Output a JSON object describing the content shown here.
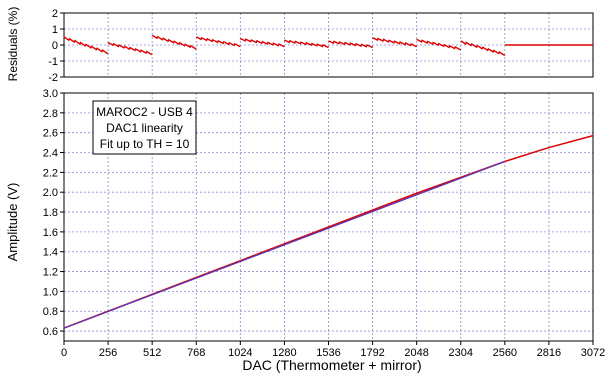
{
  "chart_data": [
    {
      "type": "line",
      "panel": "residuals",
      "ylabel": "Residuals (%)",
      "ylim": [
        -2,
        2
      ],
      "yticks": [
        "-2",
        "-1",
        "0",
        "1",
        "2"
      ],
      "xlim": [
        0,
        3072
      ],
      "grid": true,
      "series": [
        {
          "color": "#dd0000",
          "segments": [
            {
              "x": [
                0,
                256
              ],
              "y": [
                0.45,
                -0.5
              ]
            },
            {
              "x": [
                256,
                512
              ],
              "y": [
                0.1,
                -0.55
              ]
            },
            {
              "x": [
                512,
                768
              ],
              "y": [
                0.55,
                -0.2
              ]
            },
            {
              "x": [
                768,
                1024
              ],
              "y": [
                0.45,
                -0.05
              ]
            },
            {
              "x": [
                1024,
                1280
              ],
              "y": [
                0.35,
                -0.05
              ]
            },
            {
              "x": [
                1280,
                1536
              ],
              "y": [
                0.25,
                -0.1
              ]
            },
            {
              "x": [
                1536,
                1792
              ],
              "y": [
                0.2,
                -0.1
              ]
            },
            {
              "x": [
                1792,
                2048
              ],
              "y": [
                0.4,
                -0.05
              ]
            },
            {
              "x": [
                2048,
                2304
              ],
              "y": [
                0.3,
                -0.25
              ]
            },
            {
              "x": [
                2304,
                2560
              ],
              "y": [
                0.2,
                -0.6
              ]
            },
            {
              "x": [
                2560,
                3072
              ],
              "y": [
                0,
                0
              ]
            }
          ]
        }
      ]
    },
    {
      "type": "line",
      "panel": "amplitude",
      "xlabel": "DAC (Thermometer + mirror)",
      "ylabel": "Amplitude (V)",
      "xlim": [
        0,
        3072
      ],
      "ylim": [
        0.5,
        3.0
      ],
      "xticks": [
        0,
        256,
        512,
        768,
        1024,
        1280,
        1536,
        1792,
        2048,
        2304,
        2560,
        2816,
        3072
      ],
      "yticks": [
        "0.6",
        "0.8",
        "1.0",
        "1.2",
        "1.4",
        "1.6",
        "1.8",
        "2.0",
        "2.2",
        "2.4",
        "2.6",
        "2.8",
        "3.0"
      ],
      "grid": true,
      "series": [
        {
          "color": "#dd0000",
          "x": [
            0,
            256,
            512,
            768,
            1024,
            1280,
            1536,
            1792,
            2048,
            2304,
            2560,
            2816,
            3072
          ],
          "y": [
            0.63,
            0.8,
            0.97,
            1.14,
            1.31,
            1.48,
            1.65,
            1.82,
            1.99,
            2.15,
            2.31,
            2.45,
            2.57
          ]
        },
        {
          "color": "#6633aa",
          "x": [
            0,
            2560
          ],
          "y": [
            0.63,
            2.31
          ]
        }
      ],
      "legend": {
        "lines": [
          "MAROC2 - USB 4",
          "DAC1 linearity",
          "Fit up to TH = 10"
        ],
        "placement": "top-left"
      }
    }
  ]
}
